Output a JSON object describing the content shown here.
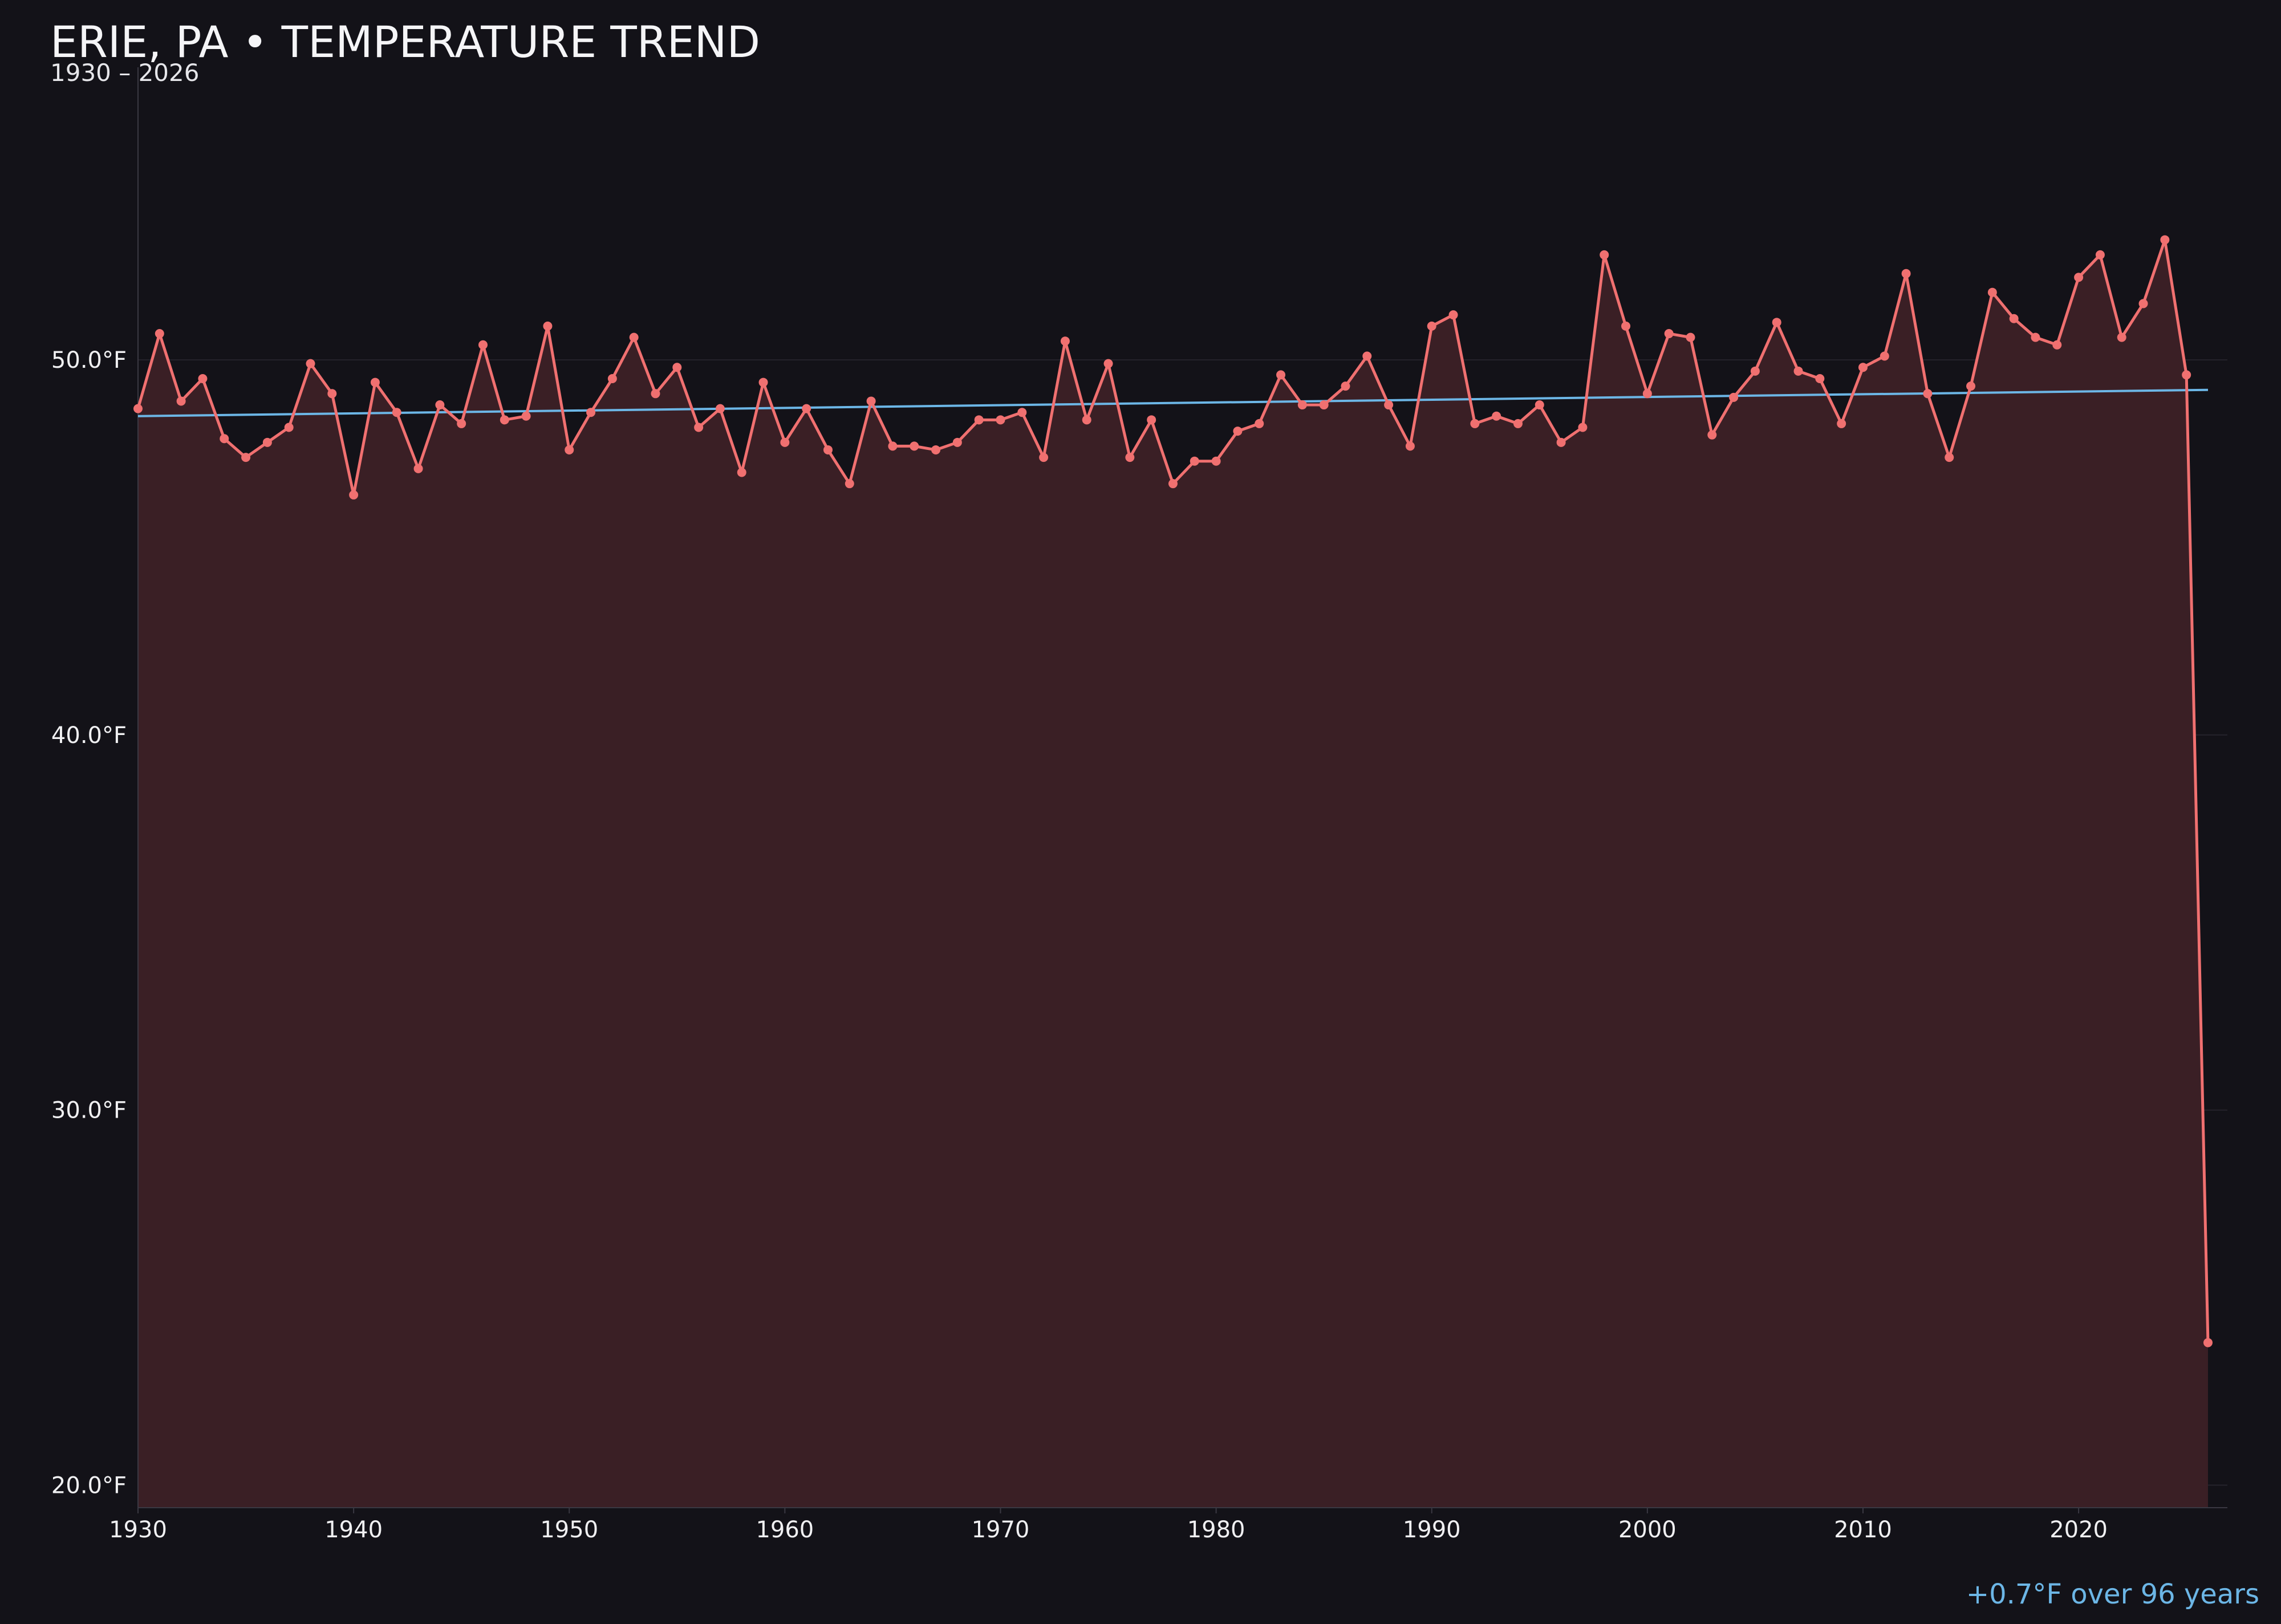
{
  "title": "ERIE, PA • TEMPERATURE TREND",
  "subtitle": "1930 – 2026",
  "trend_note": "+0.7°F over 96 years",
  "colors": {
    "background": "#131218",
    "line": "#f07070",
    "area_fill": "#3a1f25",
    "trend": "#6cb6e6",
    "grid": "#25232b",
    "axis": "#3a3842",
    "tick_text": "#f0f0f2"
  },
  "chart_data": {
    "type": "line",
    "title": "ERIE, PA • TEMPERATURE TREND",
    "subtitle": "1930 – 2026",
    "xlabel": "",
    "ylabel": "",
    "xlim": [
      1930,
      2026.9
    ],
    "ylim": [
      19.4,
      57.8
    ],
    "x_ticks": [
      1930,
      1940,
      1950,
      1960,
      1970,
      1980,
      1990,
      2000,
      2010,
      2020
    ],
    "y_ticks": [
      20,
      30,
      40,
      50
    ],
    "y_tick_labels": [
      "20.0°F",
      "30.0°F",
      "40.0°F",
      "50.0°F"
    ],
    "grid": "horizontal",
    "legend": "none",
    "series": [
      {
        "x": [
          1930,
          1931,
          1932,
          1933,
          1934,
          1935,
          1936,
          1937,
          1938,
          1939,
          1940,
          1941,
          1942,
          1943,
          1944,
          1945,
          1946,
          1947,
          1948,
          1949,
          1950,
          1951,
          1952,
          1953,
          1954,
          1955,
          1956,
          1957,
          1958,
          1959,
          1960,
          1961,
          1962,
          1963,
          1964,
          1965,
          1966,
          1967,
          1968,
          1969,
          1970,
          1971,
          1972,
          1973,
          1974,
          1975,
          1976,
          1977,
          1978,
          1979,
          1980,
          1981,
          1982,
          1983,
          1984,
          1985,
          1986,
          1987,
          1988,
          1989,
          1990,
          1991,
          1992,
          1993,
          1994,
          1995,
          1996,
          1997,
          1998,
          1999,
          2000,
          2001,
          2002,
          2003,
          2004,
          2005,
          2006,
          2007,
          2008,
          2009,
          2010,
          2011,
          2012,
          2013,
          2014,
          2015,
          2016,
          2017,
          2018,
          2019,
          2020,
          2021,
          2022,
          2023,
          2024,
          2025,
          2026
        ],
        "values": [
          48.7,
          50.7,
          48.9,
          49.5,
          47.9,
          47.4,
          47.8,
          48.2,
          49.9,
          49.1,
          46.4,
          49.4,
          48.6,
          47.1,
          48.8,
          48.3,
          50.4,
          48.4,
          48.5,
          50.9,
          47.6,
          48.6,
          49.5,
          50.6,
          49.1,
          49.8,
          48.2,
          48.7,
          47.0,
          49.4,
          47.8,
          48.7,
          47.6,
          46.7,
          48.9,
          47.7,
          47.7,
          47.6,
          47.8,
          48.4,
          48.4,
          48.6,
          47.4,
          50.5,
          48.4,
          49.9,
          47.4,
          48.4,
          46.7,
          47.3,
          47.3,
          48.1,
          48.3,
          49.6,
          48.8,
          48.8,
          49.3,
          50.1,
          48.8,
          47.7,
          50.9,
          51.2,
          48.3,
          48.5,
          48.3,
          48.8,
          47.8,
          48.2,
          52.8,
          50.9,
          49.1,
          50.7,
          50.6,
          48.0,
          49.0,
          49.7,
          51.0,
          49.7,
          49.5,
          48.3,
          49.8,
          50.1,
          52.3,
          49.1,
          47.4,
          49.3,
          51.8,
          51.1,
          50.6,
          50.4,
          52.2,
          52.8,
          50.6,
          51.5,
          53.2,
          49.6,
          23.8
        ]
      },
      {
        "name": "trend",
        "x": [
          1930,
          2026
        ],
        "values": [
          48.5,
          49.2
        ]
      }
    ]
  }
}
